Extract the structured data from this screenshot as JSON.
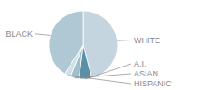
{
  "chart_data": {
    "type": "pie",
    "categories": [
      "WHITE",
      "A.I.",
      "ASIAN",
      "HISPANIC",
      "BLACK"
    ],
    "values": [
      46,
      6,
      4,
      3,
      41
    ],
    "colors": [
      "#c5d5e0",
      "#5b8fa8",
      "#a0bfcc",
      "#d0dfe8",
      "#b0c8d4"
    ]
  }
}
